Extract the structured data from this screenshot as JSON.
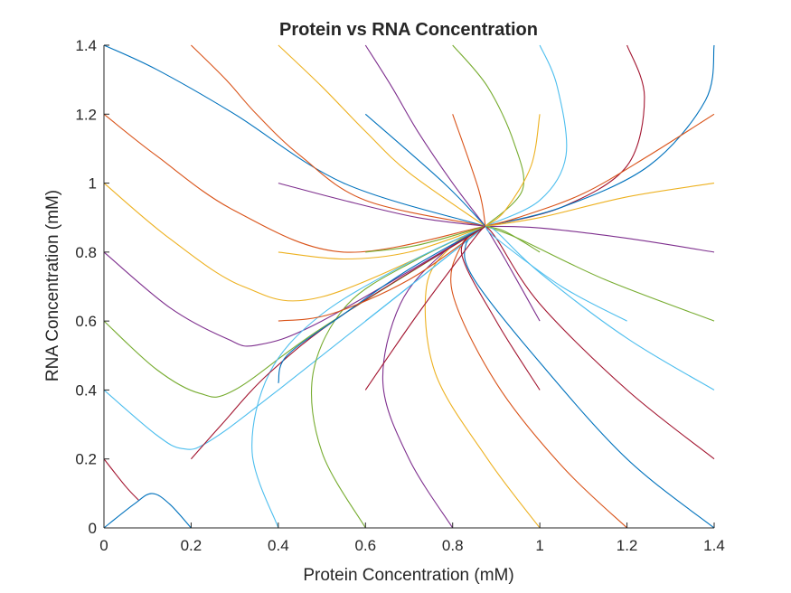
{
  "chart_data": {
    "type": "line",
    "title": "Protein vs RNA Concentration",
    "xlabel": "Protein Concentration (mM)",
    "ylabel": "RNA Concentration (mM)",
    "xlim": [
      0,
      1.4
    ],
    "ylim": [
      0,
      1.4
    ],
    "xticks": [
      "0",
      "0.2",
      "0.4",
      "0.6",
      "0.8",
      "1",
      "1.2",
      "1.4"
    ],
    "yticks": [
      "0",
      "0.2",
      "0.4",
      "0.6",
      "0.8",
      "1",
      "1.2",
      "1.4"
    ],
    "grid": false,
    "legend": "none",
    "fixed_point": [
      0.875,
      0.875
    ],
    "color_order": [
      "#0072BD",
      "#D95319",
      "#EDB120",
      "#7E2F8E",
      "#77AC30",
      "#4DBEEE",
      "#A2142F"
    ],
    "series": [
      {
        "x": [
          0.0,
          0.12,
          0.3,
          0.55,
          0.875
        ],
        "y": [
          1.4,
          1.33,
          1.2,
          1.0,
          0.875
        ]
      },
      {
        "x": [
          0.0,
          0.12,
          0.3,
          0.55,
          0.875
        ],
        "y": [
          1.2,
          1.08,
          0.92,
          0.8,
          0.875
        ]
      },
      {
        "x": [
          0.0,
          0.15,
          0.32,
          0.5,
          0.875
        ],
        "y": [
          1.0,
          0.84,
          0.7,
          0.67,
          0.875
        ]
      },
      {
        "x": [
          0.0,
          0.15,
          0.28,
          0.35,
          0.5,
          0.875
        ],
        "y": [
          0.8,
          0.64,
          0.55,
          0.53,
          0.6,
          0.875
        ]
      },
      {
        "x": [
          0.0,
          0.12,
          0.22,
          0.3,
          0.5,
          0.875
        ],
        "y": [
          0.6,
          0.46,
          0.39,
          0.4,
          0.58,
          0.875
        ]
      },
      {
        "x": [
          0.0,
          0.12,
          0.18,
          0.24,
          0.4,
          0.875
        ],
        "y": [
          0.4,
          0.27,
          0.23,
          0.25,
          0.4,
          0.875
        ]
      },
      {
        "x": [
          0.0,
          0.05,
          0.08
        ],
        "y": [
          0.2,
          0.12,
          0.08
        ]
      },
      {
        "x": [
          0.0,
          0.07,
          0.11,
          0.15,
          0.2
        ],
        "y": [
          0.0,
          0.07,
          0.1,
          0.07,
          0.0
        ]
      },
      {
        "x": [
          0.2,
          0.28,
          0.35,
          0.45,
          0.6,
          0.875
        ],
        "y": [
          1.4,
          1.3,
          1.2,
          1.08,
          0.95,
          0.875
        ]
      },
      {
        "x": [
          0.4,
          0.5,
          0.6,
          0.7,
          0.875
        ],
        "y": [
          1.4,
          1.28,
          1.15,
          1.03,
          0.875
        ]
      },
      {
        "x": [
          0.6,
          0.66,
          0.72,
          0.8,
          0.875
        ],
        "y": [
          1.4,
          1.28,
          1.15,
          1.0,
          0.875
        ]
      },
      {
        "x": [
          0.8,
          0.88,
          0.94,
          0.96,
          0.875
        ],
        "y": [
          1.4,
          1.28,
          1.12,
          0.98,
          0.875
        ]
      },
      {
        "x": [
          1.0,
          1.04,
          1.06,
          1.0,
          0.875
        ],
        "y": [
          1.4,
          1.28,
          1.08,
          0.95,
          0.875
        ]
      },
      {
        "x": [
          1.2,
          1.24,
          1.2,
          1.05,
          0.875
        ],
        "y": [
          1.4,
          1.25,
          1.05,
          0.93,
          0.875
        ]
      },
      {
        "x": [
          1.4,
          1.38,
          1.25,
          1.05,
          0.875
        ],
        "y": [
          1.4,
          1.24,
          1.05,
          0.93,
          0.875
        ]
      },
      {
        "x": [
          1.4,
          1.25,
          1.1,
          0.95,
          0.875
        ],
        "y": [
          1.2,
          1.08,
          0.97,
          0.9,
          0.875
        ]
      },
      {
        "x": [
          1.4,
          1.2,
          1.0,
          0.875
        ],
        "y": [
          1.0,
          0.96,
          0.9,
          0.875
        ]
      },
      {
        "x": [
          1.4,
          1.2,
          1.0,
          0.875
        ],
        "y": [
          0.8,
          0.84,
          0.87,
          0.875
        ]
      },
      {
        "x": [
          1.4,
          1.15,
          0.95,
          0.875
        ],
        "y": [
          0.6,
          0.72,
          0.84,
          0.875
        ]
      },
      {
        "x": [
          1.4,
          1.2,
          1.0,
          0.9,
          0.875
        ],
        "y": [
          0.4,
          0.55,
          0.74,
          0.86,
          0.875
        ]
      },
      {
        "x": [
          1.4,
          1.2,
          1.0,
          0.9,
          0.875
        ],
        "y": [
          0.2,
          0.4,
          0.65,
          0.84,
          0.875
        ]
      },
      {
        "x": [
          1.4,
          1.2,
          1.0,
          0.85,
          0.83,
          0.875
        ],
        "y": [
          0.0,
          0.2,
          0.48,
          0.72,
          0.82,
          0.875
        ]
      },
      {
        "x": [
          1.2,
          1.05,
          0.9,
          0.8,
          0.82,
          0.875
        ],
        "y": [
          0.0,
          0.18,
          0.42,
          0.68,
          0.82,
          0.875
        ]
      },
      {
        "x": [
          1.0,
          0.88,
          0.76,
          0.74,
          0.8,
          0.875
        ],
        "y": [
          0.0,
          0.2,
          0.45,
          0.7,
          0.82,
          0.875
        ]
      },
      {
        "x": [
          0.8,
          0.7,
          0.64,
          0.68,
          0.78,
          0.875
        ],
        "y": [
          0.0,
          0.2,
          0.42,
          0.65,
          0.8,
          0.875
        ]
      },
      {
        "x": [
          0.6,
          0.5,
          0.48,
          0.56,
          0.72,
          0.875
        ],
        "y": [
          0.0,
          0.22,
          0.45,
          0.65,
          0.78,
          0.875
        ]
      },
      {
        "x": [
          0.4,
          0.34,
          0.38,
          0.5,
          0.7,
          0.875
        ],
        "y": [
          0.0,
          0.22,
          0.45,
          0.62,
          0.77,
          0.875
        ]
      },
      {
        "x": [
          0.2,
          0.27,
          0.38,
          0.55,
          0.875
        ],
        "y": [
          0.2,
          0.3,
          0.45,
          0.62,
          0.875
        ]
      },
      {
        "x": [
          0.4,
          0.42,
          0.55,
          0.7,
          0.875
        ],
        "y": [
          0.42,
          0.5,
          0.62,
          0.75,
          0.875
        ]
      },
      {
        "x": [
          0.4,
          0.52,
          0.7,
          0.875
        ],
        "y": [
          0.6,
          0.62,
          0.72,
          0.875
        ]
      },
      {
        "x": [
          0.4,
          0.55,
          0.7,
          0.875
        ],
        "y": [
          0.8,
          0.78,
          0.8,
          0.875
        ]
      },
      {
        "x": [
          0.4,
          0.55,
          0.72,
          0.875
        ],
        "y": [
          1.0,
          0.95,
          0.9,
          0.875
        ]
      },
      {
        "x": [
          0.6,
          0.72,
          0.875
        ],
        "y": [
          0.8,
          0.82,
          0.875
        ]
      },
      {
        "x": [
          0.6,
          0.66,
          0.75,
          0.875
        ],
        "y": [
          0.6,
          0.66,
          0.75,
          0.875
        ]
      },
      {
        "x": [
          0.6,
          0.72,
          0.85,
          0.875
        ],
        "y": [
          0.4,
          0.62,
          0.84,
          0.875
        ]
      },
      {
        "x": [
          0.6,
          0.78,
          0.875
        ],
        "y": [
          1.2,
          1.0,
          0.875
        ]
      },
      {
        "x": [
          0.8,
          0.86,
          0.875
        ],
        "y": [
          1.2,
          0.98,
          0.875
        ]
      },
      {
        "x": [
          1.0,
          0.98,
          0.92,
          0.875
        ],
        "y": [
          1.2,
          1.05,
          0.92,
          0.875
        ]
      },
      {
        "x": [
          1.0,
          0.92,
          0.875
        ],
        "y": [
          0.6,
          0.78,
          0.875
        ]
      },
      {
        "x": [
          1.0,
          0.92,
          0.875
        ],
        "y": [
          0.8,
          0.86,
          0.875
        ]
      },
      {
        "x": [
          1.2,
          1.05,
          0.9,
          0.875
        ],
        "y": [
          0.6,
          0.7,
          0.84,
          0.875
        ]
      },
      {
        "x": [
          1.0,
          0.9,
          0.82,
          0.875
        ],
        "y": [
          0.4,
          0.6,
          0.8,
          0.875
        ]
      }
    ]
  }
}
